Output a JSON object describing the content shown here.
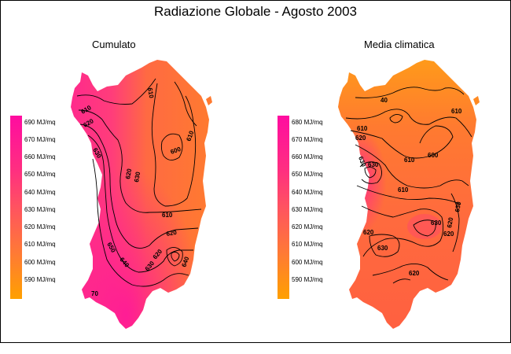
{
  "title": "Radiazione Globale - Agosto 2003",
  "panels": [
    {
      "title": "Cumulato",
      "legend": [
        "690 MJ/mq",
        "670 MJ/mq",
        "660 MJ/mq",
        "650 MJ/mq",
        "640 MJ/mq",
        "630 MJ/mq",
        "620 MJ/mq",
        "610 MJ/mq",
        "600 MJ/mq",
        "590 MJ/mq"
      ],
      "contour_labels": [
        "610",
        "620",
        "630",
        "610",
        "620",
        "600",
        "610",
        "620",
        "610",
        "620",
        "630",
        "640",
        "640",
        "650",
        "630",
        "70"
      ]
    },
    {
      "title": "Media climatica",
      "legend": [
        "680 MJ/mq",
        "670 MJ/mq",
        "660 MJ/mq",
        "650 MJ/mq",
        "640 MJ/mq",
        "630 MJ/mq",
        "620 MJ/mq",
        "610 MJ/mq",
        "600 MJ/mq",
        "590 MJ/mq"
      ],
      "contour_labels": [
        "40",
        "610",
        "620",
        "630",
        "610",
        "600",
        "610",
        "610",
        "620",
        "620",
        "630",
        "630",
        "630",
        "630",
        "620",
        "620"
      ]
    }
  ],
  "colors": {
    "scale_low": "#ffa000",
    "scale_mid": "#ff6a3a",
    "scale_high": "#ff0ca0",
    "contour": "#000000"
  }
}
